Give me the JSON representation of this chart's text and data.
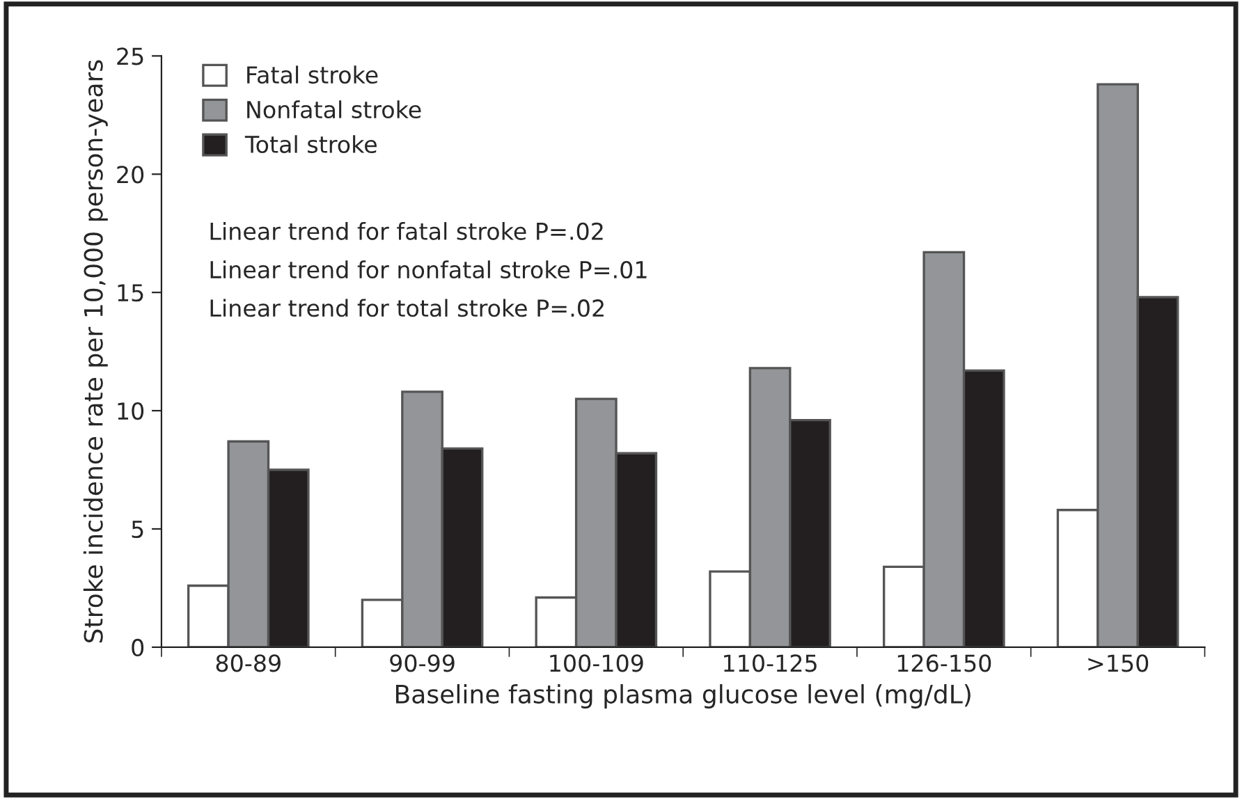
{
  "chart_data": {
    "type": "bar",
    "xlabel": "Baseline fasting plasma glucose level (mg/dL)",
    "ylabel": "Stroke incidence rate per 10,000 person-years",
    "categories": [
      "80-89",
      "90-99",
      "100-109",
      "110-125",
      "126-150",
      ">150"
    ],
    "series": [
      {
        "name": "Fatal stroke",
        "color": "#ffffff",
        "values": [
          2.6,
          2.0,
          2.1,
          3.2,
          3.4,
          5.8
        ]
      },
      {
        "name": "Nonfatal stroke",
        "color": "#939598",
        "values": [
          8.7,
          10.8,
          10.5,
          11.8,
          16.7,
          23.8
        ]
      },
      {
        "name": "Total stroke",
        "color": "#231f20",
        "values": [
          7.5,
          8.4,
          8.2,
          9.6,
          11.7,
          14.8
        ]
      }
    ],
    "ylim": [
      0,
      25
    ],
    "yticks": [
      0,
      5,
      10,
      15,
      20,
      25
    ],
    "annotations": [
      "Linear trend for fatal stroke P=.02",
      "Linear trend for nonfatal stroke P=.01",
      "Linear trend for total stroke P=.02"
    ],
    "legend": "top left",
    "grid": false
  }
}
